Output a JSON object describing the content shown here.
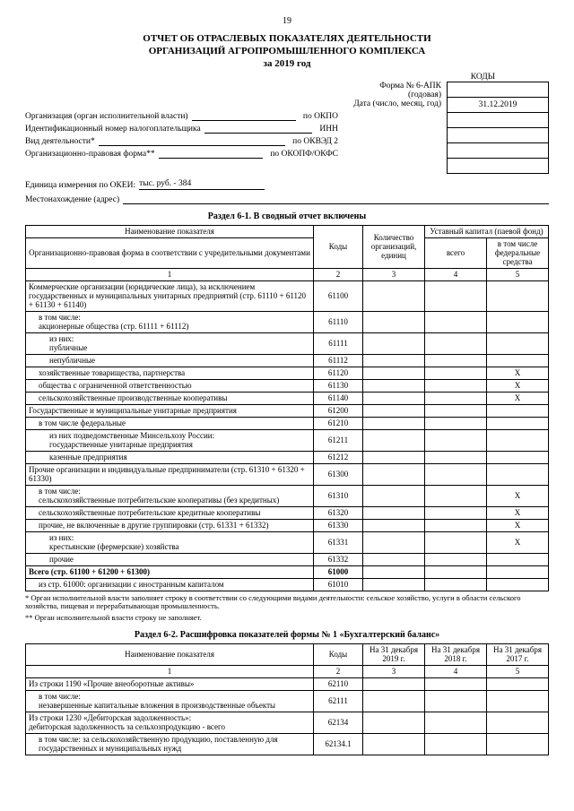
{
  "page_number": "19",
  "title_line1": "ОТЧЕТ ОБ ОТРАСЛЕВЫХ ПОКАЗАТЕЛЯХ ДЕЯТЕЛЬНОСТИ",
  "title_line2": "ОРГАНИЗАЦИЙ АГРОПРОМЫШЛЕННОГО КОМПЛЕКСА",
  "title_line3": "за 2019 год",
  "kody_header": "КОДЫ",
  "form_meta": {
    "form_no": "Форма № 6-АПК",
    "annual": "(годовая)",
    "date_label": "Дата (число, месяц, год)",
    "date_value": "31.12.2019",
    "org_label": "Организация (орган исполнительной власти)",
    "okpo": "по ОКПО",
    "inn_label": "Идентификационный номер налогоплательщика",
    "inn": "ИНН",
    "activity_label": "Вид деятельности*",
    "okved": "по ОКВЭД 2",
    "legal_label": "Организационно-правовая форма**",
    "okopf": "по ОКОПФ/ОКФС",
    "unit_label": "Единица измерения по ОКЕИ:",
    "unit_value": "тыс. руб. - 384",
    "address_label": "Местонахождение (адрес)"
  },
  "section61": {
    "title": "Раздел 6-1. В сводный отчет включены",
    "head_name": "Наименование показателя",
    "head_sub": "Организационно-правовая форма в соответствии с учредительными документами",
    "head_code": "Коды",
    "head_count": "Количество организаций, единиц",
    "head_cap": "Уставный капитал (паевой фонд)",
    "head_total": "всего",
    "head_fed": "в том числе федеральные средства",
    "num1": "1",
    "num2": "2",
    "num3": "3",
    "num4": "4",
    "num5": "5",
    "rows": [
      {
        "name": "Коммерческие организации (юридические лица), за исключением государственных и муниципальных унитарных предприятий (стр. 61110 + 61120 + 61130 + 61140)",
        "code": "61100",
        "ind": 0,
        "v3": "",
        "v4": "",
        "v5": ""
      },
      {
        "name": "в том числе:\nакционерные общества (стр. 61111 + 61112)",
        "code": "61110",
        "ind": 1,
        "v3": "",
        "v4": "",
        "v5": ""
      },
      {
        "name": "из них:\nпубличные",
        "code": "61111",
        "ind": 2,
        "v3": "",
        "v4": "",
        "v5": ""
      },
      {
        "name": "непубличные",
        "code": "61112",
        "ind": 2,
        "v3": "",
        "v4": "",
        "v5": ""
      },
      {
        "name": "хозяйственные товарищества, партнерства",
        "code": "61120",
        "ind": 1,
        "v3": "",
        "v4": "",
        "v5": "X"
      },
      {
        "name": "общества с ограниченной ответственностью",
        "code": "61130",
        "ind": 1,
        "v3": "",
        "v4": "",
        "v5": "X"
      },
      {
        "name": "сельскохозяйственные производственные кооперативы",
        "code": "61140",
        "ind": 1,
        "v3": "",
        "v4": "",
        "v5": "X"
      },
      {
        "name": "Государственные и муниципальные унитарные предприятия",
        "code": "61200",
        "ind": 0,
        "v3": "",
        "v4": "",
        "v5": ""
      },
      {
        "name": "в том числе федеральные",
        "code": "61210",
        "ind": 1,
        "v3": "",
        "v4": "",
        "v5": ""
      },
      {
        "name": "из них подведомственные Минсельхозу России:\nгосударственные унитарные предприятия",
        "code": "61211",
        "ind": 2,
        "v3": "",
        "v4": "",
        "v5": ""
      },
      {
        "name": "казенные предприятия",
        "code": "61212",
        "ind": 2,
        "v3": "",
        "v4": "",
        "v5": ""
      },
      {
        "name": "Прочие организации и индивидуальные предприниматели (стр. 61310 + 61320 + 61330)",
        "code": "61300",
        "ind": 0,
        "v3": "",
        "v4": "",
        "v5": ""
      },
      {
        "name": "в том числе:\nсельскохозяйственные потребительские кооперативы (без кредитных)",
        "code": "61310",
        "ind": 1,
        "v3": "",
        "v4": "",
        "v5": "X"
      },
      {
        "name": "сельскохозяйственные потребительские кредитные кооперативы",
        "code": "61320",
        "ind": 1,
        "v3": "",
        "v4": "",
        "v5": "X"
      },
      {
        "name": "прочие, не включенные в другие группировки (стр. 61331 + 61332)",
        "code": "61330",
        "ind": 1,
        "v3": "",
        "v4": "",
        "v5": "X"
      },
      {
        "name": "из них:\nкрестьянские (фермерские) хозяйства",
        "code": "61331",
        "ind": 2,
        "v3": "",
        "v4": "",
        "v5": "X"
      },
      {
        "name": "прочие",
        "code": "61332",
        "ind": 2,
        "v3": "",
        "v4": "",
        "v5": ""
      },
      {
        "name": "Всего (стр. 61100 + 61200 + 61300)",
        "code": "61000",
        "ind": 0,
        "bold": true,
        "v3": "",
        "v4": "",
        "v5": ""
      },
      {
        "name": "из стр. 61000: организации с иностранным капиталом",
        "code": "61010",
        "ind": 1,
        "v3": "",
        "v4": "",
        "v5": ""
      }
    ]
  },
  "footnote1": "* Орган исполнительной власти заполняет строку в соответствии со следующими видами деятельности: сельское хозяйство, услуги в области сельского хозяйства, пищевая и перерабатывающая промышленность.",
  "footnote2": "** Орган исполнительной власти строку не заполняет.",
  "section62": {
    "title": "Раздел 6-2. Расшифровка показателей формы № 1 «Бухгалтерский баланс»",
    "head_name": "Наименование показателя",
    "head_code": "Коды",
    "head_2019": "На 31 декабря 2019 г.",
    "head_2018": "На 31 декабря 2018 г.",
    "head_2017": "На 31 декабря 2017 г.",
    "num1": "1",
    "num2": "2",
    "num3": "3",
    "num4": "4",
    "num5": "5",
    "rows": [
      {
        "name": "Из строки 1190 «Прочие внеоборотные активы»",
        "code": "62110",
        "ind": 0
      },
      {
        "name": "в том числе:\nнезавершенные капитальные вложения в производственные объекты",
        "code": "62111",
        "ind": 1
      },
      {
        "name": "Из строки 1230 «Дебиторская задолженность»:\nдебиторская задолженность за сельхозпродукцию - всего",
        "code": "62134",
        "ind": 0
      },
      {
        "name": "в том числе: за сельскохозяйственную продукцию, поставленную для государственных и муниципальных нужд",
        "code": "62134.1",
        "ind": 1
      }
    ]
  }
}
